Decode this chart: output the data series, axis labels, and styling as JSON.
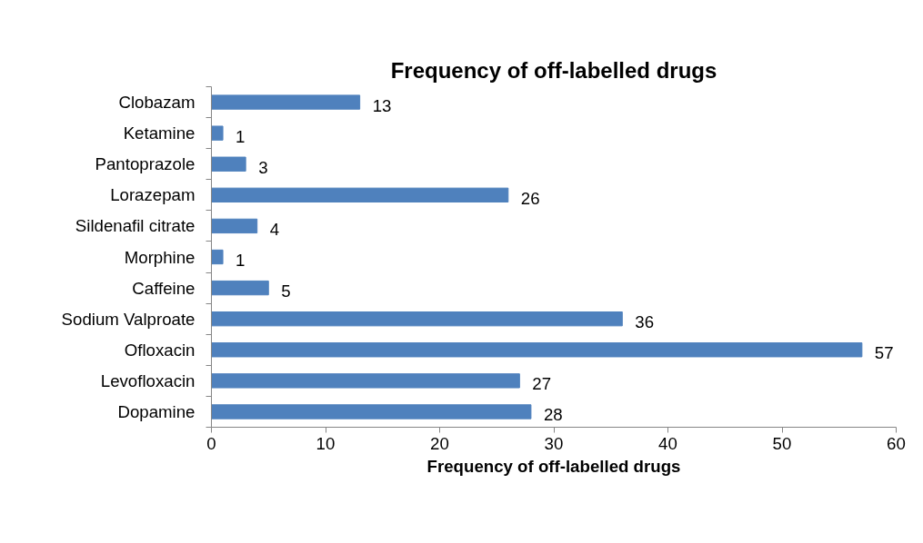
{
  "chart_data": {
    "type": "bar",
    "orientation": "horizontal",
    "title": "Frequency of off-labelled drugs",
    "xlabel": "Frequency of off-labelled drugs",
    "categories": [
      "Clobazam",
      "Ketamine",
      "Pantoprazole",
      "Lorazepam",
      "Sildenafil citrate",
      "Morphine",
      "Caffeine",
      "Sodium Valproate",
      "Ofloxacin",
      "Levofloxacin",
      "Dopamine"
    ],
    "values": [
      13,
      1,
      3,
      26,
      4,
      1,
      5,
      36,
      57,
      27,
      28
    ],
    "color": "#4f81bd",
    "xlim": [
      0,
      60
    ],
    "xticks": [
      0,
      10,
      20,
      30,
      40,
      50,
      60
    ],
    "data_labels": true,
    "grid": false
  }
}
